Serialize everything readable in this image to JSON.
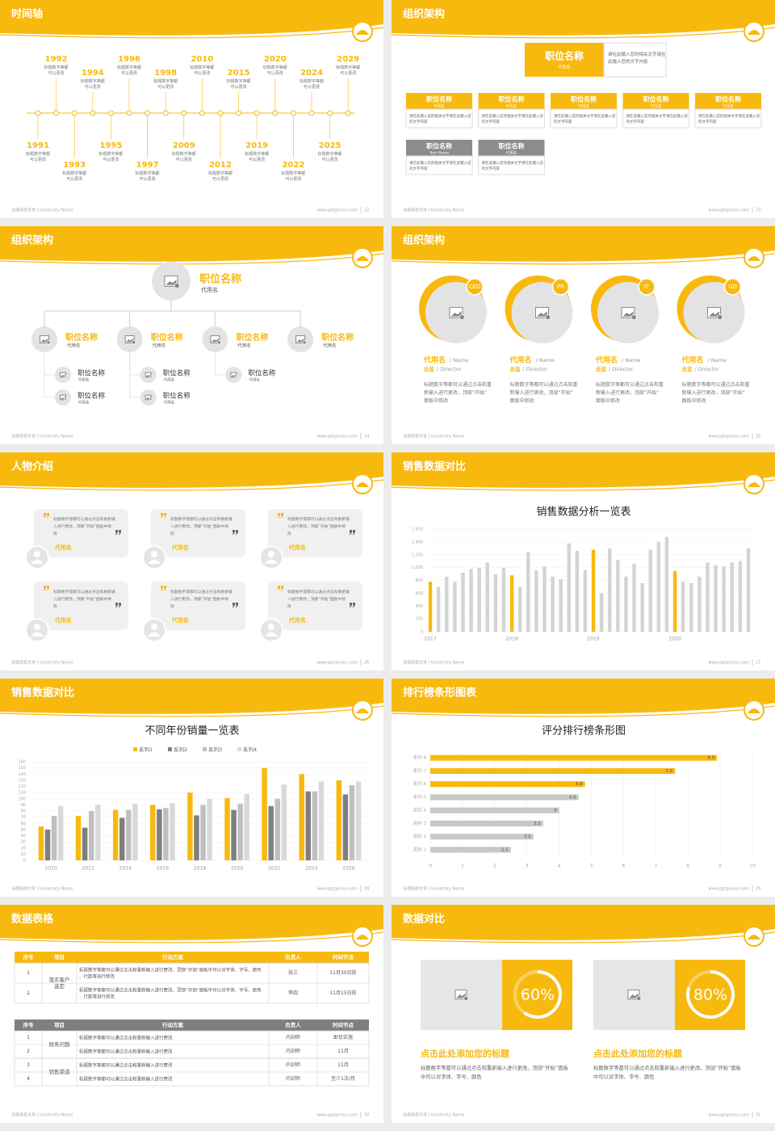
{
  "theme": "#f8b90f",
  "footer": {
    "school": "当得高校大学 | University Name",
    "url": "www.pptgenius.com"
  },
  "slides": [
    {
      "title": "时间轴",
      "page": 22,
      "event_text": "标题数字等都可以更改",
      "years": [
        "1991",
        "1992",
        "1993",
        "1994",
        "1995",
        "1996",
        "1997",
        "1998",
        "2009",
        "2010",
        "2012",
        "2015",
        "2019",
        "2020",
        "2022",
        "2024",
        "2025",
        "2029"
      ]
    },
    {
      "title": "组织架构",
      "page": 23,
      "head": {
        "name": "职位名称",
        "sub": "代用名",
        "text": "请在此输入您的相关文字请在此输入您的文字内容"
      },
      "boxes": [
        {
          "name": "职位名称",
          "sub": "代用名",
          "text": "请在此输入您的相关文字请在此输入您的文字内容",
          "tone": "#f8b90f"
        },
        {
          "name": "职位名称",
          "sub": "代用名",
          "text": "请在此输入您的相关文字请在此输入您的文字内容",
          "tone": "#f8b90f"
        },
        {
          "name": "职位名称",
          "sub": "代用名",
          "text": "请在此输入您的相关文字请在此输入您的文字内容",
          "tone": "#f8b90f"
        },
        {
          "name": "职位名称",
          "sub": "代用名",
          "text": "请在此输入您的相关文字请在此输入您的文字内容",
          "tone": "#f8b90f"
        },
        {
          "name": "职位名称",
          "sub": "代用名",
          "text": "请在此输入您的相关文字请在此输入您的文字内容",
          "tone": "#f8b90f"
        },
        {
          "name": "职位名称",
          "sub": "Your Name",
          "text": "请在此输入您的相关文字请在此输入您的文字内容",
          "tone": "#8c8c8c"
        },
        {
          "name": "职位名称",
          "sub": "代用名",
          "text": "请在此输入您的相关文字请在此输入您的文字内容",
          "tone": "#8c8c8c"
        }
      ]
    },
    {
      "title": "组织架构",
      "page": 24,
      "head": {
        "name": "职位名称",
        "sub": "代用名"
      },
      "members": [
        {
          "name": "职位名称",
          "sub": "代用名",
          "children": [
            {
              "name": "职位名称",
              "sub": "代用名"
            },
            {
              "name": "职位名称",
              "sub": "代用名"
            }
          ]
        },
        {
          "name": "职位名称",
          "sub": "代用名",
          "children": [
            {
              "name": "职位名称",
              "sub": "代用名"
            },
            {
              "name": "职位名称",
              "sub": "代用名"
            }
          ]
        },
        {
          "name": "职位名称",
          "sub": "代用名",
          "children": [
            {
              "name": "职位名称",
              "sub": "代用名"
            }
          ]
        },
        {
          "name": "职位名称",
          "sub": "代用名",
          "children": []
        }
      ]
    },
    {
      "title": "组织架构",
      "page": 25,
      "people": [
        {
          "tag": "CEO",
          "name": "代用名",
          "name_en": "/ Name",
          "role": "总监",
          "role_en": "/ Director",
          "text": "标题数字等都可以通过点击和重新输入进行更改，顶部“开始”面板中修改"
        },
        {
          "tag": "PR",
          "name": "代用名",
          "name_en": "/ Name",
          "role": "总监",
          "role_en": "/ Director",
          "text": "标题数字等都可以通过点击和重新输入进行更改，顶部“开始”面板中修改"
        },
        {
          "tag": "IT",
          "name": "代用名",
          "name_en": "/ Name",
          "role": "总监",
          "role_en": "/ Director",
          "text": "标题数字等都可以通过点击和重新输入进行更改，顶部“开始”面板中修改"
        },
        {
          "tag": "GD",
          "name": "代用名",
          "name_en": "/ Name",
          "role": "总监",
          "role_en": "/ Director",
          "text": "标题数字等都可以通过点击和重新输入进行更改，顶部“开始”面板中修改"
        }
      ]
    },
    {
      "title": "人物介绍",
      "page": 26,
      "quotes": [
        {
          "quote": "标题数字等都可以通过点击和重新输入进行更改，顶部“开始”面板中修改",
          "name": "代用名"
        },
        {
          "quote": "标题数字等都可以通过点击和重新输入进行更改，顶部“开始”面板中修改",
          "name": "代用名"
        },
        {
          "quote": "标题数字等都可以通过点击和重新输入进行更改，顶部“开始”面板中修改",
          "name": "代用名"
        },
        {
          "quote": "标题数字等都可以通过点击和重新输入进行更改，顶部“开始”面板中修改",
          "name": "代用名"
        },
        {
          "quote": "标题数字等都可以通过点击和重新输入进行更改，顶部“开始”面板中修改",
          "name": "代用名"
        },
        {
          "quote": "标题数字等都可以通过点击和重新输入进行更改，顶部“开始”面板中修改",
          "name": "代用名"
        }
      ]
    },
    {
      "title": "销售数据对比",
      "page": 27,
      "chart": {
        "type": "bar",
        "title": "销售数据分析一览表",
        "categories": [
          "2017",
          null,
          null,
          null,
          null,
          null,
          null,
          null,
          null,
          null,
          "2018",
          null,
          null,
          null,
          null,
          null,
          null,
          null,
          null,
          null,
          "2019",
          null,
          null,
          null,
          null,
          null,
          null,
          null,
          null,
          null,
          "2020",
          null,
          null,
          null,
          null,
          null,
          null,
          null,
          null,
          null
        ],
        "values": [
          780,
          700,
          860,
          780,
          920,
          980,
          1000,
          1080,
          900,
          1000,
          880,
          700,
          1240,
          960,
          1020,
          860,
          820,
          1380,
          1260,
          960,
          1280,
          600,
          1300,
          1120,
          860,
          1060,
          760,
          1280,
          1400,
          1480,
          950,
          780,
          760,
          860,
          1080,
          1040,
          1020,
          1080,
          1100,
          1300
        ],
        "color": "#d4d4d4",
        "highlight_color": "#f8b90f",
        "highlight": [
          0,
          10,
          20,
          30
        ],
        "ylim": [
          0,
          1600
        ],
        "yticks": [
          0,
          200,
          400,
          600,
          800,
          {
            "value": 1000,
            "label": "1,000"
          },
          {
            "value": 1200,
            "label": "1,200"
          },
          {
            "value": 1400,
            "label": "1,400"
          },
          {
            "value": 1600,
            "label": "1,600"
          }
        ],
        "grid": true
      }
    },
    {
      "title": "销售数据对比",
      "page": 28,
      "chart": {
        "type": "grouped-bar",
        "title": "不同年份销量一览表",
        "categories": [
          "2010",
          "2012",
          "2014",
          "2016",
          "2018",
          "2020",
          "2022",
          "2024",
          "2026"
        ],
        "series": [
          {
            "name": "系列1",
            "color": "#f8b90f",
            "values": [
              55,
              72,
              82,
              90,
              110,
              101,
              150,
              140,
              130
            ]
          },
          {
            "name": "系列2",
            "color": "#7f7f7f",
            "values": [
              50,
              53,
              69,
              83,
              73,
              82,
              88,
              112,
              107
            ]
          },
          {
            "name": "系列3",
            "color": "#bfbfbf",
            "values": [
              72,
              80,
              82,
              85,
              90,
              92,
              100,
              112,
              122
            ]
          },
          {
            "name": "系列4",
            "color": "#d9d9d9",
            "values": [
              88,
              90,
              92,
              93,
              100,
              108,
              123,
              128,
              128
            ]
          }
        ],
        "ylim": [
          0,
          160
        ],
        "yticks": [
          0,
          10,
          20,
          30,
          40,
          50,
          60,
          70,
          80,
          90,
          100,
          110,
          120,
          130,
          140,
          150,
          160
        ],
        "grid": true,
        "legend": "top"
      }
    },
    {
      "title": "排行榜条形图表",
      "page": 29,
      "chart": {
        "type": "hbar",
        "title": "评分排行榜条形图",
        "categories": [
          "类别 1",
          "类别 2",
          "类别 3",
          "类别 4",
          "系列 5",
          "系列 6",
          "系列 7",
          "系列 8"
        ],
        "values": [
          2.5,
          3.2,
          3.5,
          4,
          4.6,
          4.8,
          7.6,
          8.9
        ],
        "color": "#c8c8c8",
        "highlight_color": "#f8b90f",
        "highlight": [
          5,
          6,
          7
        ],
        "xlim": [
          0,
          10
        ],
        "xticks": [
          0,
          1,
          2,
          3,
          4,
          5,
          6,
          7,
          8,
          9,
          10
        ],
        "grid": true
      }
    },
    {
      "title": "数据表格",
      "page": 30,
      "tables": [
        {
          "header": [
            "序号",
            "项目",
            "行动方案",
            "负责人",
            "时间节点"
          ],
          "header_color": "#f8b90f",
          "groups": [
            {
              "project": "落实客户选定",
              "rows": [
                [
                  "1",
                  "标题数字等都可以通过点击和重新输入进行更改，顶部“开始”面板中可以对字体、字号、颜色、行距等进行修改",
                  "张三",
                  "11月30日前"
                ],
                [
                  "2",
                  "标题数字等都可以通过点击和重新输入进行更改，顶部“开始”面板中可以对字体、字号、颜色、行距等进行修改",
                  "李四",
                  "11月15日前"
                ]
              ]
            }
          ]
        },
        {
          "header": [
            "序号",
            "项目",
            "行动方案",
            "负责人",
            "时间节点"
          ],
          "header_color": "#7f7f7f",
          "groups": [
            {
              "project": "财务问题",
              "rows": [
                [
                  "1",
                  "标题数字等都可以通过点击和重新输入进行更改",
                  "内训师",
                  "即日实施"
                ],
                [
                  "2",
                  "标题数字等都可以通过点击和重新输入进行更改",
                  "内训师",
                  "11月"
                ]
              ]
            },
            {
              "project": "销售渠道",
              "rows": [
                [
                  "3",
                  "标题数字等都可以通过点击和重新输入进行更改",
                  "内训师",
                  "11月"
                ],
                [
                  "4",
                  "标题数字等都可以通过点击和重新输入进行更改",
                  "内训师",
                  "至少1次/月"
                ]
              ]
            }
          ]
        }
      ]
    },
    {
      "title": "数据对比",
      "page": 31,
      "rings": [
        {
          "value": 60,
          "label": "60%",
          "title": "点击此处添加您的标题",
          "text": "标题数字等都可以通过点击和重新输入进行更改，顶部“开始”面板中可以对字体、字号、颜色"
        },
        {
          "value": 80,
          "label": "80%",
          "title": "点击此处添加您的标题",
          "text": "标题数字等都可以通过点击和重新输入进行更改，顶部“开始”面板中可以对字体、字号、颜色"
        }
      ]
    }
  ]
}
